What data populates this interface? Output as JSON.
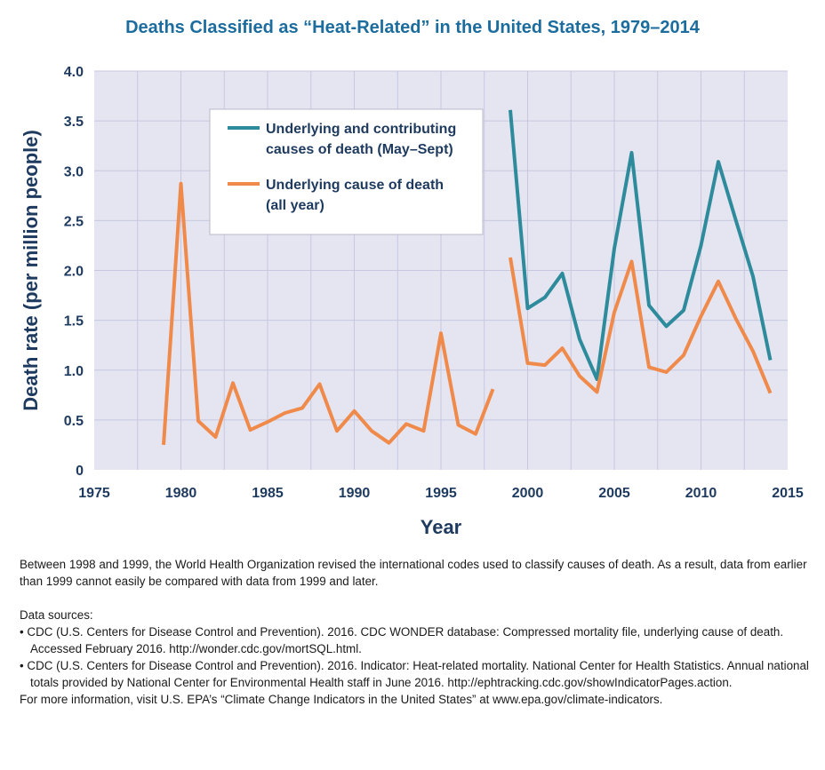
{
  "title": "Deaths Classified as “Heat-Related” in the United States, 1979–2014",
  "chart_data": {
    "type": "line",
    "xlabel": "Year",
    "ylabel": "Death rate (per million people)",
    "xlim": [
      1975,
      2015
    ],
    "ylim": [
      0,
      4.0
    ],
    "x_ticks": [
      "1975",
      "1980",
      "1985",
      "1990",
      "1995",
      "2000",
      "2005",
      "2010",
      "2015"
    ],
    "y_ticks": [
      "0",
      "0.5",
      "1.0",
      "1.5",
      "2.0",
      "2.5",
      "3.0",
      "3.5",
      "4.0"
    ],
    "grid": true,
    "background": "#e4e5f1",
    "grid_color": "#c7c8e0",
    "legend_position": "top-center",
    "series": [
      {
        "name": "Underlying and contributing causes of death (May–Sept)",
        "legend_lines": [
          "Underlying and contributing",
          "causes of death (May–Sept)"
        ],
        "color": "#2e8b9c",
        "x": [
          1999,
          2000,
          2001,
          2002,
          2003,
          2004,
          2005,
          2006,
          2007,
          2008,
          2009,
          2010,
          2011,
          2012,
          2013,
          2014
        ],
        "values": [
          3.61,
          1.62,
          1.73,
          1.97,
          1.31,
          0.91,
          2.22,
          3.18,
          1.65,
          1.44,
          1.6,
          2.25,
          3.09,
          2.51,
          1.94,
          1.1
        ]
      },
      {
        "name": "Underlying cause of death (all year)",
        "legend_lines": [
          "Underlying cause of death",
          "(all year)"
        ],
        "color": "#f08a4b",
        "x": [
          1979,
          1980,
          1981,
          1982,
          1983,
          1984,
          1985,
          1986,
          1987,
          1988,
          1989,
          1990,
          1991,
          1992,
          1993,
          1994,
          1995,
          1996,
          1997,
          1998,
          1999,
          2000,
          2001,
          2002,
          2003,
          2004,
          2005,
          2006,
          2007,
          2008,
          2009,
          2010,
          2011,
          2012,
          2013,
          2014
        ],
        "values": [
          0.25,
          2.87,
          0.49,
          0.33,
          0.87,
          0.4,
          0.48,
          0.57,
          0.62,
          0.86,
          0.39,
          0.59,
          0.39,
          0.27,
          0.46,
          0.39,
          1.37,
          0.45,
          0.36,
          0.81,
          2.13,
          1.07,
          1.05,
          1.22,
          0.94,
          0.78,
          1.58,
          2.09,
          1.03,
          0.98,
          1.15,
          1.54,
          1.89,
          1.52,
          1.19,
          0.77
        ]
      }
    ]
  },
  "notes": {
    "note": "Between 1998 and 1999, the World Health Organization revised the international codes used to classify causes of death. As a result, data from earlier than 1999 cannot easily be compared with data from 1999 and later.",
    "sources_heading": "Data sources:",
    "sources": [
      "• CDC (U.S. Centers for Disease Control and Prevention). 2016. CDC WONDER database: Compressed mortality file, underlying cause of death. Accessed February 2016. http://wonder.cdc.gov/mortSQL.html.",
      "• CDC (U.S. Centers for Disease Control and Prevention). 2016. Indicator: Heat-related mortality. National Center for Health Statistics. Annual national totals provided by National Center for Environmental Health staff in June 2016. http://ephtracking.cdc.gov/showIndicatorPages.action."
    ],
    "more_info": "For more information, visit U.S. EPA’s “Climate Change Indicators in the United States” at www.epa.gov/climate-indicators."
  }
}
